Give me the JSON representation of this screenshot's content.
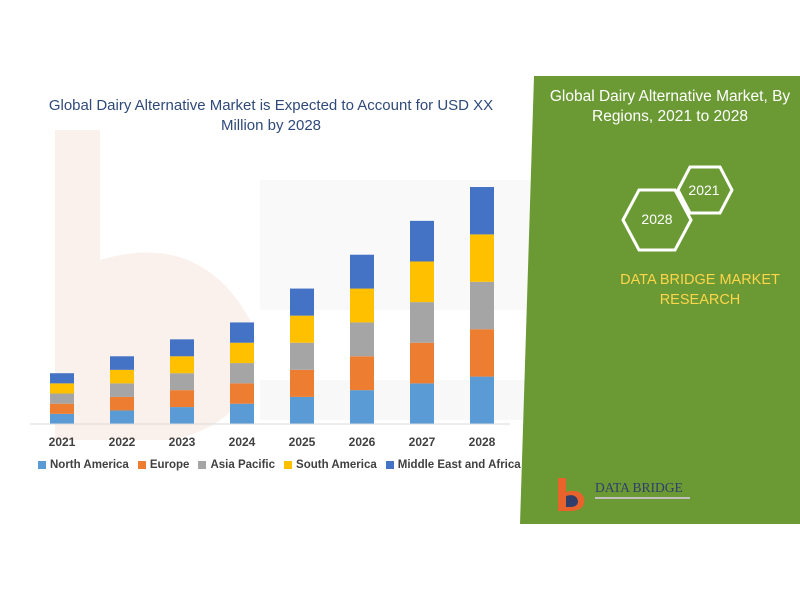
{
  "title": "Global Dairy Alternative Market is Expected to Account for USD XX Million by 2028",
  "panel": {
    "title": "Global Dairy Alternative Market, By Regions, 2021 to 2028",
    "hex_2021": "2021",
    "hex_2028": "2028",
    "company": "DATA BRIDGE MARKET RESEARCH",
    "logo_text": "DATA BRIDGE"
  },
  "colors": {
    "panel_green": "#6b9a35",
    "accent_yellow": "#ffd54a",
    "title_blue": "#2f4a7a"
  },
  "chart_data": {
    "type": "bar",
    "stacked": true,
    "categories": [
      "2021",
      "2022",
      "2023",
      "2024",
      "2025",
      "2026",
      "2027",
      "2028"
    ],
    "series": [
      {
        "name": "North America",
        "color": "#5b9bd5",
        "values": [
          1.5,
          2.0,
          2.5,
          3.0,
          4.0,
          5.0,
          6.0,
          7.0
        ]
      },
      {
        "name": "Europe",
        "color": "#ed7d31",
        "values": [
          1.5,
          2.0,
          2.5,
          3.0,
          4.0,
          5.0,
          6.0,
          7.0
        ]
      },
      {
        "name": "Asia Pacific",
        "color": "#a5a5a5",
        "values": [
          1.5,
          2.0,
          2.5,
          3.0,
          4.0,
          5.0,
          6.0,
          7.0
        ]
      },
      {
        "name": "South America",
        "color": "#ffc000",
        "values": [
          1.5,
          2.0,
          2.5,
          3.0,
          4.0,
          5.0,
          6.0,
          7.0
        ]
      },
      {
        "name": "Middle East and Africa",
        "color": "#4472c4",
        "values": [
          1.5,
          2.0,
          2.5,
          3.0,
          4.0,
          5.0,
          6.0,
          7.0
        ]
      }
    ],
    "ylim": [
      0,
      35
    ],
    "xlabel": "",
    "ylabel": "",
    "grid": false,
    "legend": "bottom"
  }
}
